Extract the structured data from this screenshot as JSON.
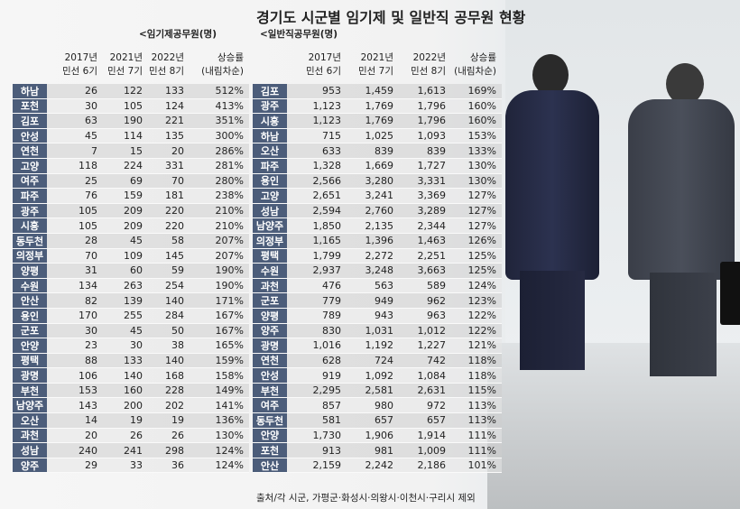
{
  "title": "경기도 시군별 임기제 및 일반직 공무원 현황",
  "left": {
    "subtitle": "<임기제공무원(명)",
    "headers": [
      {
        "l1": "2017년",
        "l2": "민선 6기"
      },
      {
        "l1": "2021년",
        "l2": "민선 7기"
      },
      {
        "l1": "2022년",
        "l2": "민선 8기"
      },
      {
        "l1": "상승률",
        "l2": "(내림차순)"
      }
    ],
    "rows": [
      [
        "하남",
        "26",
        "122",
        "133",
        "512%"
      ],
      [
        "포천",
        "30",
        "105",
        "124",
        "413%"
      ],
      [
        "김포",
        "63",
        "190",
        "221",
        "351%"
      ],
      [
        "안성",
        "45",
        "114",
        "135",
        "300%"
      ],
      [
        "연천",
        "7",
        "15",
        "20",
        "286%"
      ],
      [
        "고양",
        "118",
        "224",
        "331",
        "281%"
      ],
      [
        "여주",
        "25",
        "69",
        "70",
        "280%"
      ],
      [
        "파주",
        "76",
        "159",
        "181",
        "238%"
      ],
      [
        "광주",
        "105",
        "209",
        "220",
        "210%"
      ],
      [
        "시흥",
        "105",
        "209",
        "220",
        "210%"
      ],
      [
        "동두천",
        "28",
        "45",
        "58",
        "207%"
      ],
      [
        "의정부",
        "70",
        "109",
        "145",
        "207%"
      ],
      [
        "양평",
        "31",
        "60",
        "59",
        "190%"
      ],
      [
        "수원",
        "134",
        "263",
        "254",
        "190%"
      ],
      [
        "안산",
        "82",
        "139",
        "140",
        "171%"
      ],
      [
        "용인",
        "170",
        "255",
        "284",
        "167%"
      ],
      [
        "군포",
        "30",
        "45",
        "50",
        "167%"
      ],
      [
        "안양",
        "23",
        "30",
        "38",
        "165%"
      ],
      [
        "평택",
        "88",
        "133",
        "140",
        "159%"
      ],
      [
        "광명",
        "106",
        "140",
        "168",
        "158%"
      ],
      [
        "부천",
        "153",
        "160",
        "228",
        "149%"
      ],
      [
        "남양주",
        "143",
        "200",
        "202",
        "141%"
      ],
      [
        "오산",
        "14",
        "19",
        "19",
        "136%"
      ],
      [
        "과천",
        "20",
        "26",
        "26",
        "130%"
      ],
      [
        "성남",
        "240",
        "241",
        "298",
        "124%"
      ],
      [
        "양주",
        "29",
        "33",
        "36",
        "124%"
      ]
    ]
  },
  "right": {
    "subtitle": "<일반직공무원(명)",
    "headers": [
      {
        "l1": "2017년",
        "l2": "민선 6기"
      },
      {
        "l1": "2021년",
        "l2": "민선 7기"
      },
      {
        "l1": "2022년",
        "l2": "민선 8기"
      },
      {
        "l1": "상승률",
        "l2": "(내림차순)"
      }
    ],
    "rows": [
      [
        "김포",
        "953",
        "1,459",
        "1,613",
        "169%"
      ],
      [
        "광주",
        "1,123",
        "1,769",
        "1,796",
        "160%"
      ],
      [
        "시흥",
        "1,123",
        "1,769",
        "1,796",
        "160%"
      ],
      [
        "하남",
        "715",
        "1,025",
        "1,093",
        "153%"
      ],
      [
        "오산",
        "633",
        "839",
        "839",
        "133%"
      ],
      [
        "파주",
        "1,328",
        "1,669",
        "1,727",
        "130%"
      ],
      [
        "용인",
        "2,566",
        "3,280",
        "3,331",
        "130%"
      ],
      [
        "고양",
        "2,651",
        "3,241",
        "3,369",
        "127%"
      ],
      [
        "성남",
        "2,594",
        "2,760",
        "3,289",
        "127%"
      ],
      [
        "남양주",
        "1,850",
        "2,135",
        "2,344",
        "127%"
      ],
      [
        "의정부",
        "1,165",
        "1,396",
        "1,463",
        "126%"
      ],
      [
        "평택",
        "1,799",
        "2,272",
        "2,251",
        "125%"
      ],
      [
        "수원",
        "2,937",
        "3,248",
        "3,663",
        "125%"
      ],
      [
        "과천",
        "476",
        "563",
        "589",
        "124%"
      ],
      [
        "군포",
        "779",
        "949",
        "962",
        "123%"
      ],
      [
        "양평",
        "789",
        "943",
        "963",
        "122%"
      ],
      [
        "양주",
        "830",
        "1,031",
        "1,012",
        "122%"
      ],
      [
        "광명",
        "1,016",
        "1,192",
        "1,227",
        "121%"
      ],
      [
        "연천",
        "628",
        "724",
        "742",
        "118%"
      ],
      [
        "안성",
        "919",
        "1,092",
        "1,084",
        "118%"
      ],
      [
        "부천",
        "2,295",
        "2,581",
        "2,631",
        "115%"
      ],
      [
        "여주",
        "857",
        "980",
        "972",
        "113%"
      ],
      [
        "동두천",
        "581",
        "657",
        "657",
        "113%"
      ],
      [
        "안양",
        "1,730",
        "1,906",
        "1,914",
        "111%"
      ],
      [
        "포천",
        "913",
        "981",
        "1,009",
        "111%"
      ],
      [
        "안산",
        "2,159",
        "2,242",
        "2,186",
        "101%"
      ]
    ]
  },
  "source": "출처/각 시군, 가평군·화성시·의왕시·이천시·구리시 제외"
}
